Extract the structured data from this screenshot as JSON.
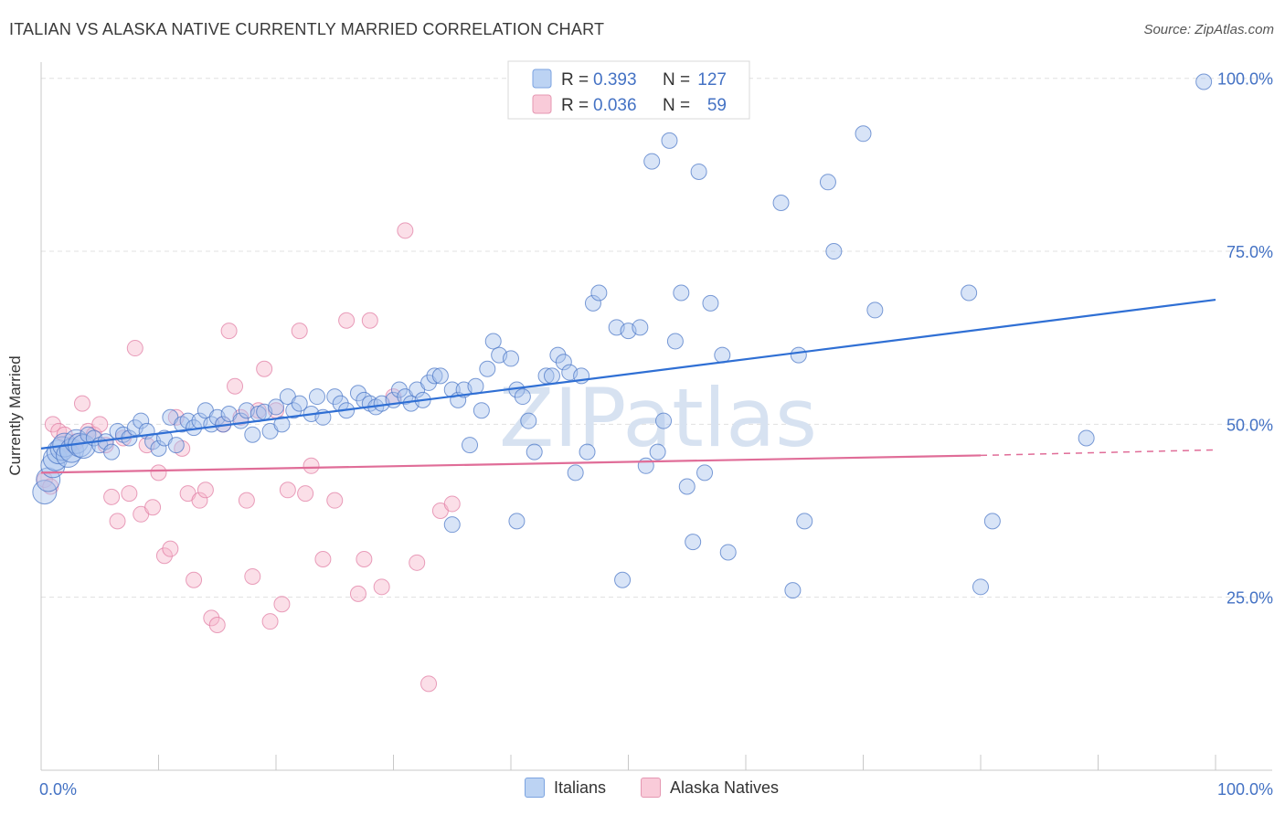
{
  "title": "ITALIAN VS ALASKA NATIVE CURRENTLY MARRIED CORRELATION CHART",
  "source": "Source: ZipAtlas.com",
  "watermark": "ZIPatlas",
  "colors": {
    "blue": "#4472c4",
    "blue_fill": "#a9c4ee",
    "blue_line": "#2f6fd4",
    "pink": "#e0779f",
    "pink_fill": "#f6b7cb",
    "pink_line": "#e06d98",
    "grid": "#e0e0e0"
  },
  "legend_stats": {
    "rows": [
      {
        "r_label": "R =",
        "r_value": "0.393",
        "n_label": "N =",
        "n_value": "127"
      },
      {
        "r_label": "R =",
        "r_value": "0.036",
        "n_label": "N =",
        "n_value": "59"
      }
    ]
  },
  "bottom_legend": [
    "Italians",
    "Alaska Natives"
  ],
  "chart_data": {
    "type": "scatter",
    "ylabel": "Currently Married",
    "xlim": [
      0,
      100
    ],
    "ylim": [
      0,
      103
    ],
    "x_tick_labels": [
      "0.0%",
      "100.0%"
    ],
    "y_ticks": [
      25,
      50,
      75,
      100
    ],
    "y_tick_labels": [
      "25.0%",
      "50.0%",
      "75.0%",
      "100.0%"
    ],
    "grid": true,
    "series": [
      {
        "name": "Italians",
        "trend": {
          "x0": 0,
          "y0": 46.5,
          "x1": 100,
          "y1": 68
        },
        "points": [
          [
            0.3,
            40.2
          ],
          [
            0.6,
            42
          ],
          [
            1,
            44
          ],
          [
            1.2,
            45
          ],
          [
            1.5,
            46
          ],
          [
            1.8,
            46.5
          ],
          [
            2,
            47
          ],
          [
            2.3,
            45.5
          ],
          [
            2.6,
            46.2
          ],
          [
            3,
            47.5
          ],
          [
            3.3,
            47
          ],
          [
            3.6,
            46.8
          ],
          [
            4,
            48.5
          ],
          [
            4.5,
            48
          ],
          [
            5,
            47
          ],
          [
            5.5,
            47.5
          ],
          [
            6,
            46
          ],
          [
            6.5,
            49
          ],
          [
            7,
            48.5
          ],
          [
            7.5,
            48
          ],
          [
            8,
            49.5
          ],
          [
            8.5,
            50.5
          ],
          [
            9,
            49
          ],
          [
            9.5,
            47.5
          ],
          [
            10,
            46.5
          ],
          [
            10.5,
            48
          ],
          [
            11,
            51
          ],
          [
            11.5,
            47
          ],
          [
            12,
            50
          ],
          [
            12.5,
            50.5
          ],
          [
            13,
            49.5
          ],
          [
            13.5,
            50.5
          ],
          [
            14,
            52
          ],
          [
            14.5,
            50
          ],
          [
            15,
            51
          ],
          [
            15.5,
            50
          ],
          [
            16,
            51.5
          ],
          [
            17,
            50.5
          ],
          [
            17.5,
            52
          ],
          [
            18,
            48.5
          ],
          [
            18.5,
            51.5
          ],
          [
            19,
            51.8
          ],
          [
            19.5,
            49
          ],
          [
            20,
            52.5
          ],
          [
            20.5,
            50
          ],
          [
            21,
            54
          ],
          [
            21.5,
            52
          ],
          [
            22,
            53
          ],
          [
            23,
            51.5
          ],
          [
            23.5,
            54
          ],
          [
            24,
            51
          ],
          [
            25,
            54
          ],
          [
            25.5,
            53
          ],
          [
            26,
            52
          ],
          [
            27,
            54.5
          ],
          [
            27.5,
            53.5
          ],
          [
            28,
            53
          ],
          [
            28.5,
            52.5
          ],
          [
            29,
            53
          ],
          [
            30,
            53.5
          ],
          [
            30.5,
            55
          ],
          [
            31,
            54
          ],
          [
            31.5,
            53
          ],
          [
            32,
            55
          ],
          [
            32.5,
            53.5
          ],
          [
            33,
            56
          ],
          [
            33.5,
            57
          ],
          [
            34,
            57
          ],
          [
            35,
            55
          ],
          [
            35.5,
            53.5
          ],
          [
            36,
            55
          ],
          [
            36.5,
            47
          ],
          [
            37,
            55.5
          ],
          [
            37.5,
            52
          ],
          [
            38,
            58
          ],
          [
            38.5,
            62
          ],
          [
            39,
            60
          ],
          [
            40,
            59.5
          ],
          [
            40.5,
            55
          ],
          [
            41,
            54
          ],
          [
            41.5,
            50.5
          ],
          [
            42,
            46
          ],
          [
            43,
            57
          ],
          [
            43.5,
            57
          ],
          [
            44,
            60
          ],
          [
            44.5,
            59
          ],
          [
            45,
            57.5
          ],
          [
            45.5,
            43
          ],
          [
            46,
            57
          ],
          [
            46.5,
            46
          ],
          [
            47,
            67.5
          ],
          [
            47.5,
            69
          ],
          [
            49,
            64
          ],
          [
            50,
            63.5
          ],
          [
            51,
            64
          ],
          [
            51.5,
            44
          ],
          [
            52,
            88
          ],
          [
            52.5,
            46
          ],
          [
            53,
            50.5
          ],
          [
            53.5,
            91
          ],
          [
            54,
            62
          ],
          [
            54.5,
            69
          ],
          [
            55,
            41
          ],
          [
            55.5,
            33
          ],
          [
            56,
            86.5
          ],
          [
            56.5,
            43
          ],
          [
            57,
            67.5
          ],
          [
            58,
            60
          ],
          [
            58.5,
            31.5
          ],
          [
            64,
            26
          ],
          [
            63,
            82
          ],
          [
            64.5,
            60
          ],
          [
            65,
            36
          ],
          [
            67,
            85
          ],
          [
            67.5,
            75
          ],
          [
            70,
            92
          ],
          [
            71,
            66.5
          ],
          [
            79,
            69
          ],
          [
            80,
            26.5
          ],
          [
            81,
            36
          ],
          [
            89,
            48
          ],
          [
            99,
            99.5
          ],
          [
            35,
            35.5
          ],
          [
            40.5,
            36
          ],
          [
            49.5,
            27.5
          ]
        ]
      },
      {
        "name": "Alaska Natives",
        "trend": {
          "x0": 0,
          "y0": 43,
          "x1": 80,
          "y1": 45.5,
          "x2": 100,
          "y2": 46.3
        },
        "points": [
          [
            0.3,
            42
          ],
          [
            0.8,
            41
          ],
          [
            1,
            50
          ],
          [
            1.5,
            49
          ],
          [
            2,
            48.5
          ],
          [
            2.5,
            47
          ],
          [
            3,
            47.5
          ],
          [
            3.5,
            53
          ],
          [
            4,
            49
          ],
          [
            4.5,
            48.5
          ],
          [
            5,
            50
          ],
          [
            5.5,
            47
          ],
          [
            6,
            39.5
          ],
          [
            6.5,
            36
          ],
          [
            7,
            48
          ],
          [
            7.5,
            40
          ],
          [
            8,
            61
          ],
          [
            8.5,
            37
          ],
          [
            9,
            47
          ],
          [
            9.5,
            38
          ],
          [
            10,
            43
          ],
          [
            10.5,
            31
          ],
          [
            11,
            32
          ],
          [
            11.5,
            51
          ],
          [
            12,
            46.5
          ],
          [
            12.5,
            40
          ],
          [
            13,
            27.5
          ],
          [
            13.5,
            39
          ],
          [
            14,
            40.5
          ],
          [
            14.5,
            22
          ],
          [
            15,
            21
          ],
          [
            15.5,
            50
          ],
          [
            16,
            63.5
          ],
          [
            16.5,
            55.5
          ],
          [
            17,
            51
          ],
          [
            17.5,
            39
          ],
          [
            18,
            28
          ],
          [
            18.5,
            52
          ],
          [
            19,
            58
          ],
          [
            19.5,
            21.5
          ],
          [
            20,
            52
          ],
          [
            20.5,
            24
          ],
          [
            21,
            40.5
          ],
          [
            22,
            63.5
          ],
          [
            22.5,
            40
          ],
          [
            23,
            44
          ],
          [
            24,
            30.5
          ],
          [
            25,
            39
          ],
          [
            26,
            65
          ],
          [
            27,
            25.5
          ],
          [
            27.5,
            30.5
          ],
          [
            28,
            65
          ],
          [
            29,
            26.5
          ],
          [
            30,
            54
          ],
          [
            31,
            78
          ],
          [
            32,
            30
          ],
          [
            33,
            12.5
          ],
          [
            34,
            37.5
          ],
          [
            35,
            38.5
          ]
        ]
      }
    ]
  }
}
